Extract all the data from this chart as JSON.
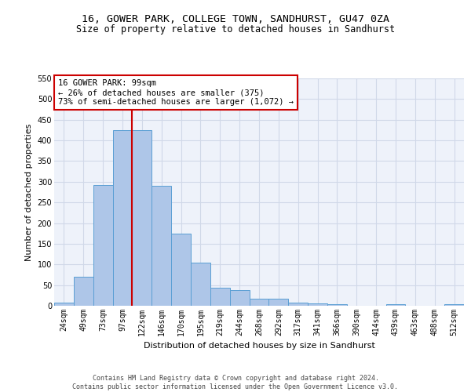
{
  "title_line1": "16, GOWER PARK, COLLEGE TOWN, SANDHURST, GU47 0ZA",
  "title_line2": "Size of property relative to detached houses in Sandhurst",
  "xlabel": "Distribution of detached houses by size in Sandhurst",
  "ylabel": "Number of detached properties",
  "categories": [
    "24sqm",
    "49sqm",
    "73sqm",
    "97sqm",
    "122sqm",
    "146sqm",
    "170sqm",
    "195sqm",
    "219sqm",
    "244sqm",
    "268sqm",
    "292sqm",
    "317sqm",
    "341sqm",
    "366sqm",
    "390sqm",
    "414sqm",
    "439sqm",
    "463sqm",
    "488sqm",
    "512sqm"
  ],
  "values": [
    8,
    70,
    292,
    425,
    425,
    290,
    175,
    105,
    44,
    38,
    17,
    17,
    8,
    5,
    4,
    0,
    0,
    4,
    0,
    0,
    4
  ],
  "bar_color": "#aec6e8",
  "bar_edge_color": "#5a9fd4",
  "property_line_x": 3.5,
  "annotation_text": "16 GOWER PARK: 99sqm\n← 26% of detached houses are smaller (375)\n73% of semi-detached houses are larger (1,072) →",
  "annotation_box_color": "#ffffff",
  "annotation_box_edge": "#cc0000",
  "vline_color": "#cc0000",
  "grid_color": "#d0d8e8",
  "bg_color": "#eef2fa",
  "footer_line1": "Contains HM Land Registry data © Crown copyright and database right 2024.",
  "footer_line2": "Contains public sector information licensed under the Open Government Licence v3.0.",
  "ylim": [
    0,
    550
  ],
  "yticks": [
    0,
    50,
    100,
    150,
    200,
    250,
    300,
    350,
    400,
    450,
    500,
    550
  ],
  "title_fontsize": 9.5,
  "subtitle_fontsize": 8.5,
  "axis_label_fontsize": 8,
  "tick_fontsize": 7,
  "footer_fontsize": 6,
  "annotation_fontsize": 7.5
}
